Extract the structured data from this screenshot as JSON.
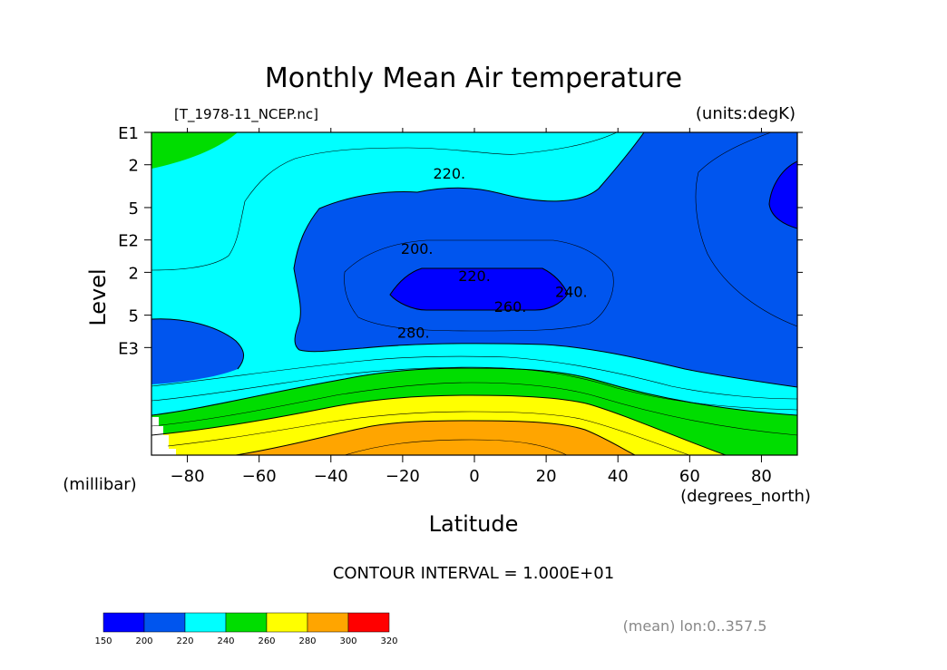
{
  "chart_data": {
    "type": "contour",
    "title": "Monthly Mean Air temperature",
    "file_label": "[T_1978-11_NCEP.nc]",
    "units_label": "(units:degK)",
    "xlabel": "Latitude",
    "xunits": "(degrees_north)",
    "ylabel": "Level",
    "yunits": "(millibar)",
    "xlim": [
      -90,
      90
    ],
    "ylim_log10": [
      0,
      3
    ],
    "x_ticks": [
      {
        "value": -80,
        "label": "-80"
      },
      {
        "value": -60,
        "label": "-60"
      },
      {
        "value": -40,
        "label": "-40"
      },
      {
        "value": -20,
        "label": "-20"
      },
      {
        "value": 0,
        "label": "0"
      },
      {
        "value": 20,
        "label": "20"
      },
      {
        "value": 40,
        "label": "40"
      },
      {
        "value": 60,
        "label": "60"
      },
      {
        "value": 80,
        "label": "80"
      }
    ],
    "y_ticks": [
      {
        "log10": 0,
        "label": "E1"
      },
      {
        "log10": 0.301,
        "label": "2"
      },
      {
        "log10": 0.699,
        "label": "5"
      },
      {
        "log10": 1,
        "label": "E2"
      },
      {
        "log10": 1.301,
        "label": "2"
      },
      {
        "log10": 1.699,
        "label": "5"
      },
      {
        "log10": 2,
        "label": "E3"
      }
    ],
    "contour_interval": "CONTOUR INTERVAL = 1.000E+01",
    "contour_labels": [
      {
        "text": "220.",
        "x": -7,
        "log10": 0.38
      },
      {
        "text": "200.",
        "x": -16,
        "log10": 1.08
      },
      {
        "text": "220.",
        "x": 0,
        "log10": 1.33
      },
      {
        "text": "240.",
        "x": 27,
        "log10": 1.48
      },
      {
        "text": "260.",
        "x": 10,
        "log10": 1.62
      },
      {
        "text": "280.",
        "x": -17,
        "log10": 1.86
      }
    ],
    "levels": [
      150,
      200,
      220,
      240,
      260,
      280,
      300,
      320
    ],
    "colorbar": [
      {
        "from": "150",
        "to": "200",
        "color": "#0000ff"
      },
      {
        "from": "200",
        "to": "220",
        "color": "#0055ee"
      },
      {
        "from": "220",
        "to": "240",
        "color": "#00ffff"
      },
      {
        "from": "240",
        "to": "260",
        "color": "#00dd00"
      },
      {
        "from": "260",
        "to": "280",
        "color": "#ffff00"
      },
      {
        "from": "280",
        "to": "300",
        "color": "#ffa500"
      },
      {
        "from": "300",
        "to": "320",
        "color": "#ff0000"
      }
    ],
    "colorbar_labels": [
      "150",
      "200",
      "220",
      "240",
      "260",
      "280",
      "300",
      "320"
    ],
    "footnote": "(mean) lon:0..357.5"
  },
  "colors": {
    "cyan": "#00ffff",
    "blue": "#0055ee",
    "deep_blue": "#0000ff",
    "green": "#00dd00",
    "yellow": "#ffff00",
    "orange": "#ffa500",
    "red": "#ff0000"
  }
}
